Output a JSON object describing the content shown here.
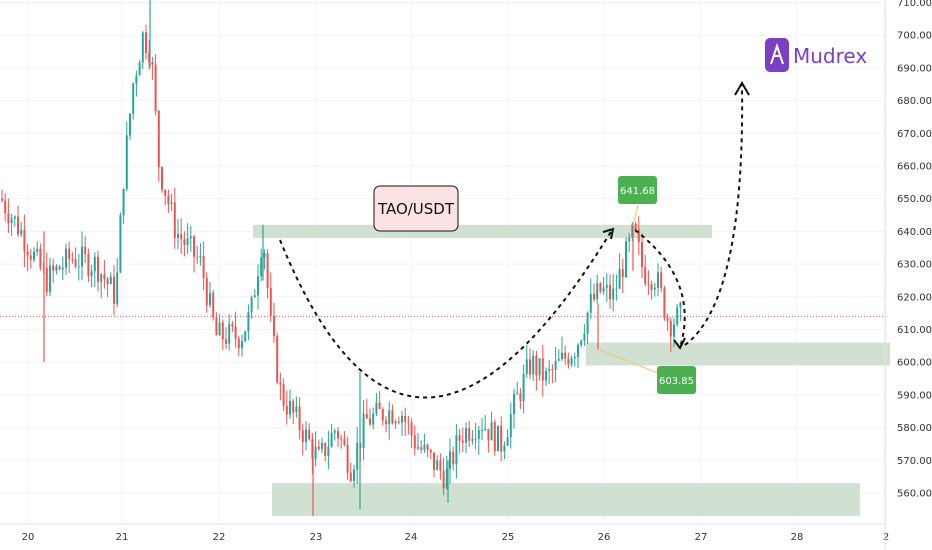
{
  "chart_data": {
    "type": "candlestick",
    "title": "TAO/USDT",
    "brand": "Mudrex",
    "x_ticks": [
      "20",
      "21",
      "22",
      "23",
      "24",
      "25",
      "26",
      "27",
      "28",
      "2"
    ],
    "y_ticks": [
      "710.00",
      "700.00",
      "690.00",
      "680.00",
      "670.00",
      "660.00",
      "650.00",
      "640.00",
      "630.00",
      "620.00",
      "610.00",
      "600.00",
      "590.00",
      "580.00",
      "570.00",
      "560.00"
    ],
    "ylim": [
      550,
      712
    ],
    "current_price_line": 614,
    "annotations": [
      {
        "text": "641.68",
        "value": 641.68,
        "kind": "high"
      },
      {
        "text": "603.85",
        "value": 603.85,
        "kind": "low"
      }
    ],
    "zones": [
      {
        "name": "resistance",
        "low": 638,
        "high": 642
      },
      {
        "name": "support",
        "low": 599,
        "high": 606
      },
      {
        "name": "base",
        "low": 553,
        "high": 563
      }
    ],
    "pattern": "cup-and-handle",
    "colors": {
      "up": "#26a69a",
      "down": "#ef5350",
      "zone": "#c9dcc9",
      "label": "#4caf50",
      "brand": "#7b3fc4",
      "current": "#e06060"
    }
  }
}
